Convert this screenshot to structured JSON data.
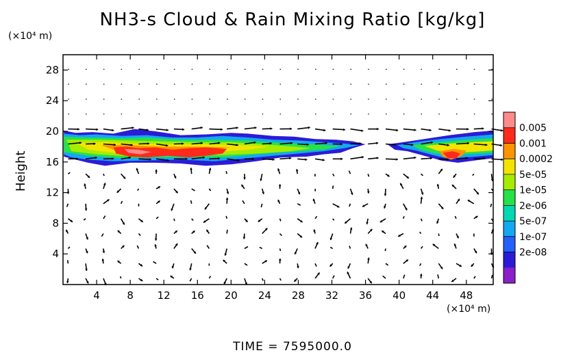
{
  "chart_data": {
    "type": "heatmap",
    "title": "NH3-s Cloud & Rain Mixing Ratio [kg/kg]",
    "xlabel": "",
    "ylabel": "Height",
    "x_unit": "(×10⁴ m)",
    "y_unit": "(×10⁴ m)",
    "footer": "TIME = 7595000.0",
    "xlim": [
      0,
      51.2
    ],
    "ylim": [
      0,
      30
    ],
    "x_ticks": [
      4,
      8,
      12,
      16,
      20,
      24,
      28,
      32,
      36,
      40,
      44,
      48
    ],
    "y_ticks": [
      4,
      8,
      12,
      16,
      20,
      24,
      28
    ],
    "legend": {
      "placement": "right",
      "labels": [
        "0.005",
        "0.001",
        "0.0002",
        "5e-05",
        "1e-05",
        "2e-06",
        "5e-07",
        "1e-07",
        "2e-08"
      ],
      "colors": [
        "#ff8a8a",
        "#ff2a1a",
        "#ff9400",
        "#f3e400",
        "#a6ec00",
        "#27e04a",
        "#00d8b4",
        "#14a8f0",
        "#2460ff",
        "#2c1bd6",
        "#8a21c8"
      ]
    },
    "cloud_layer": {
      "x_range": [
        0,
        51.2
      ],
      "bottom": 16,
      "top": 20,
      "gap": [
        35.8,
        38.6
      ],
      "core_regions": [
        {
          "x": [
            6,
            20
          ],
          "y": [
            16.5,
            18.5
          ],
          "level": "0.001"
        },
        {
          "x": [
            45,
            48
          ],
          "y": [
            16.3,
            17.2
          ],
          "level": "0.001"
        }
      ]
    }
  }
}
